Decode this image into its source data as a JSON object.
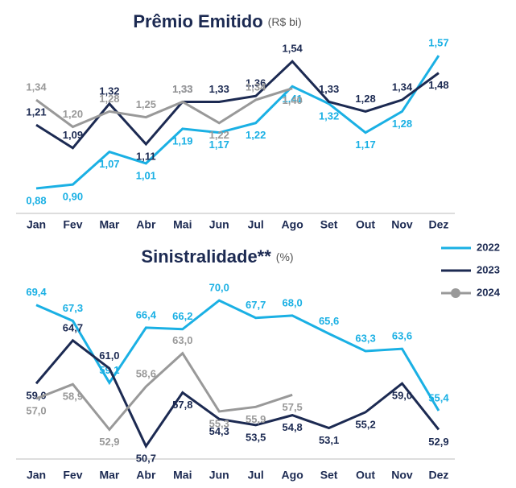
{
  "chart_data": [
    {
      "type": "line",
      "title": "Prêmio Emitido",
      "subtitle": "(R$ bi)",
      "categories": [
        "Jan",
        "Fev",
        "Mar",
        "Abr",
        "Mai",
        "Jun",
        "Jul",
        "Ago",
        "Set",
        "Out",
        "Nov",
        "Dez"
      ],
      "ylim": [
        0.75,
        1.65
      ],
      "series": [
        {
          "color": "#1ab0e4",
          "values": [
            0.88,
            0.9,
            1.07,
            1.01,
            1.19,
            1.17,
            1.22,
            1.41,
            1.32,
            1.17,
            1.28,
            1.57
          ],
          "value_labels": [
            "0,88",
            "0,90",
            "1,07",
            "1,01",
            "1,19",
            "1,17",
            "1,22",
            "1,41",
            "1,32",
            "1,17",
            "1,28",
            "1,57"
          ]
        },
        {
          "color": "#1c2a52",
          "values": [
            1.21,
            1.09,
            1.32,
            1.11,
            1.33,
            1.33,
            1.36,
            1.54,
            1.33,
            1.28,
            1.34,
            1.48
          ],
          "value_labels": [
            "1,21",
            "1,09",
            "1,32",
            "1,11",
            "1,33",
            "1,33",
            "1,36",
            "1,54",
            "1,33",
            "1,28",
            "1,34",
            "1,48"
          ]
        },
        {
          "color": "#999999",
          "values": [
            1.34,
            1.2,
            1.28,
            1.25,
            1.33,
            1.22,
            1.34,
            1.4,
            null,
            null,
            null,
            null
          ],
          "value_labels": [
            "1,34",
            "1,20",
            "1,28",
            "1,25",
            "1,33",
            "1,22",
            "1,34",
            "1,40",
            null,
            null,
            null,
            null
          ]
        }
      ]
    },
    {
      "type": "line",
      "title": "Sinistralidade**",
      "subtitle": "(%)",
      "categories": [
        "Jan",
        "Fev",
        "Mar",
        "Abr",
        "Mai",
        "Jun",
        "Jul",
        "Ago",
        "Set",
        "Out",
        "Nov",
        "Dez"
      ],
      "ylim": [
        49,
        73
      ],
      "legend": "right",
      "series": [
        {
          "name": "2022",
          "color": "#1ab0e4",
          "values": [
            69.4,
            67.3,
            59.1,
            66.4,
            66.2,
            70.0,
            67.7,
            68.0,
            65.6,
            63.3,
            63.6,
            55.4
          ],
          "value_labels": [
            "69,4",
            "67,3",
            "59,1",
            "66,4",
            "66,2",
            "70,0",
            "67,7",
            "68,0",
            "65,6",
            "63,3",
            "63,6",
            "55,4"
          ]
        },
        {
          "name": "2023",
          "color": "#1c2a52",
          "values": [
            59.0,
            64.7,
            61.0,
            50.7,
            57.8,
            54.3,
            53.5,
            54.8,
            53.1,
            55.2,
            59.0,
            52.9
          ],
          "value_labels": [
            "59,0",
            "64,7",
            "61,0",
            "50,7",
            "57,8",
            "54,3",
            "53,5",
            "54,8",
            "53,1",
            "55,2",
            "59,0",
            "52,9"
          ]
        },
        {
          "name": "2024",
          "color": "#999999",
          "values": [
            57.0,
            58.9,
            52.9,
            58.6,
            63.0,
            55.3,
            55.9,
            57.5,
            null,
            null,
            null,
            null
          ],
          "value_labels": [
            "57,0",
            "58,9",
            "52,9",
            "58,6",
            "63,0",
            "55,3",
            "55,9",
            "57,5",
            null,
            null,
            null,
            null
          ]
        }
      ]
    }
  ]
}
